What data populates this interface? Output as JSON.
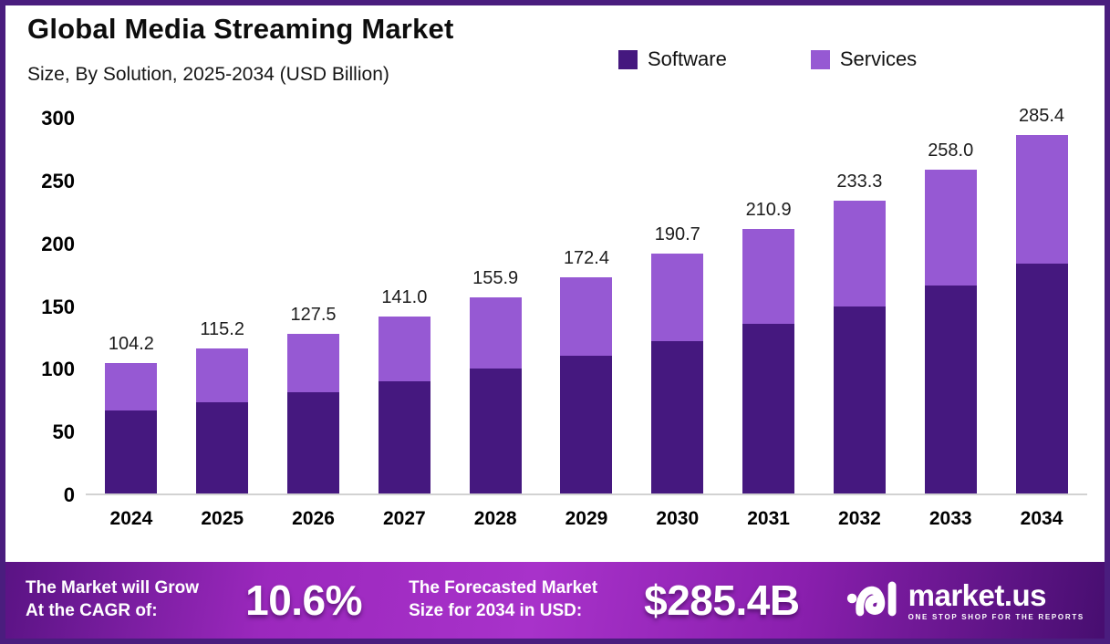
{
  "header": {
    "title": "Global Media Streaming Market",
    "subtitle": "Size, By Solution, 2025-2034 (USD Billion)"
  },
  "chart_data": {
    "type": "bar",
    "stacked": true,
    "title": "Global Media Streaming Market",
    "subtitle": "Size, By Solution, 2025-2034 (USD Billion)",
    "categories": [
      "2024",
      "2025",
      "2026",
      "2027",
      "2028",
      "2029",
      "2030",
      "2031",
      "2032",
      "2033",
      "2034"
    ],
    "series": [
      {
        "name": "Software",
        "color": "#45187f",
        "values": [
          66.0,
          73.0,
          80.8,
          89.6,
          99.5,
          110.0,
          121.5,
          135.0,
          149.3,
          165.5,
          183.3
        ]
      },
      {
        "name": "Services",
        "color": "#9659d3",
        "values": [
          38.2,
          42.2,
          46.7,
          51.4,
          56.4,
          62.4,
          69.2,
          75.9,
          84.0,
          92.5,
          102.1
        ]
      }
    ],
    "totals": [
      104.2,
      115.2,
      127.5,
      141.0,
      155.9,
      172.4,
      190.7,
      210.9,
      233.3,
      258.0,
      285.4
    ],
    "xlabel": "",
    "ylabel": "",
    "ylim": [
      0,
      300
    ],
    "yticks": [
      0,
      50,
      100,
      150,
      200,
      250,
      300
    ],
    "grid": false,
    "legend_position": "top-right"
  },
  "banner": {
    "cagr_label_line1": "The Market will Grow",
    "cagr_label_line2": "At the CAGR of:",
    "cagr_value": "10.6%",
    "forecast_label_line1": "The Forecasted Market",
    "forecast_label_line2": "Size for 2034 in USD:",
    "forecast_value": "$285.4B",
    "logo_text": "market.us",
    "logo_tagline": "ONE STOP SHOP FOR THE REPORTS"
  },
  "colors": {
    "software": "#45187f",
    "services": "#9659d3",
    "frame_border": "#4a1d7e",
    "banner_gradient_start": "#5a1384",
    "banner_gradient_mid": "#a832ca",
    "banner_gradient_end": "#470e70"
  }
}
